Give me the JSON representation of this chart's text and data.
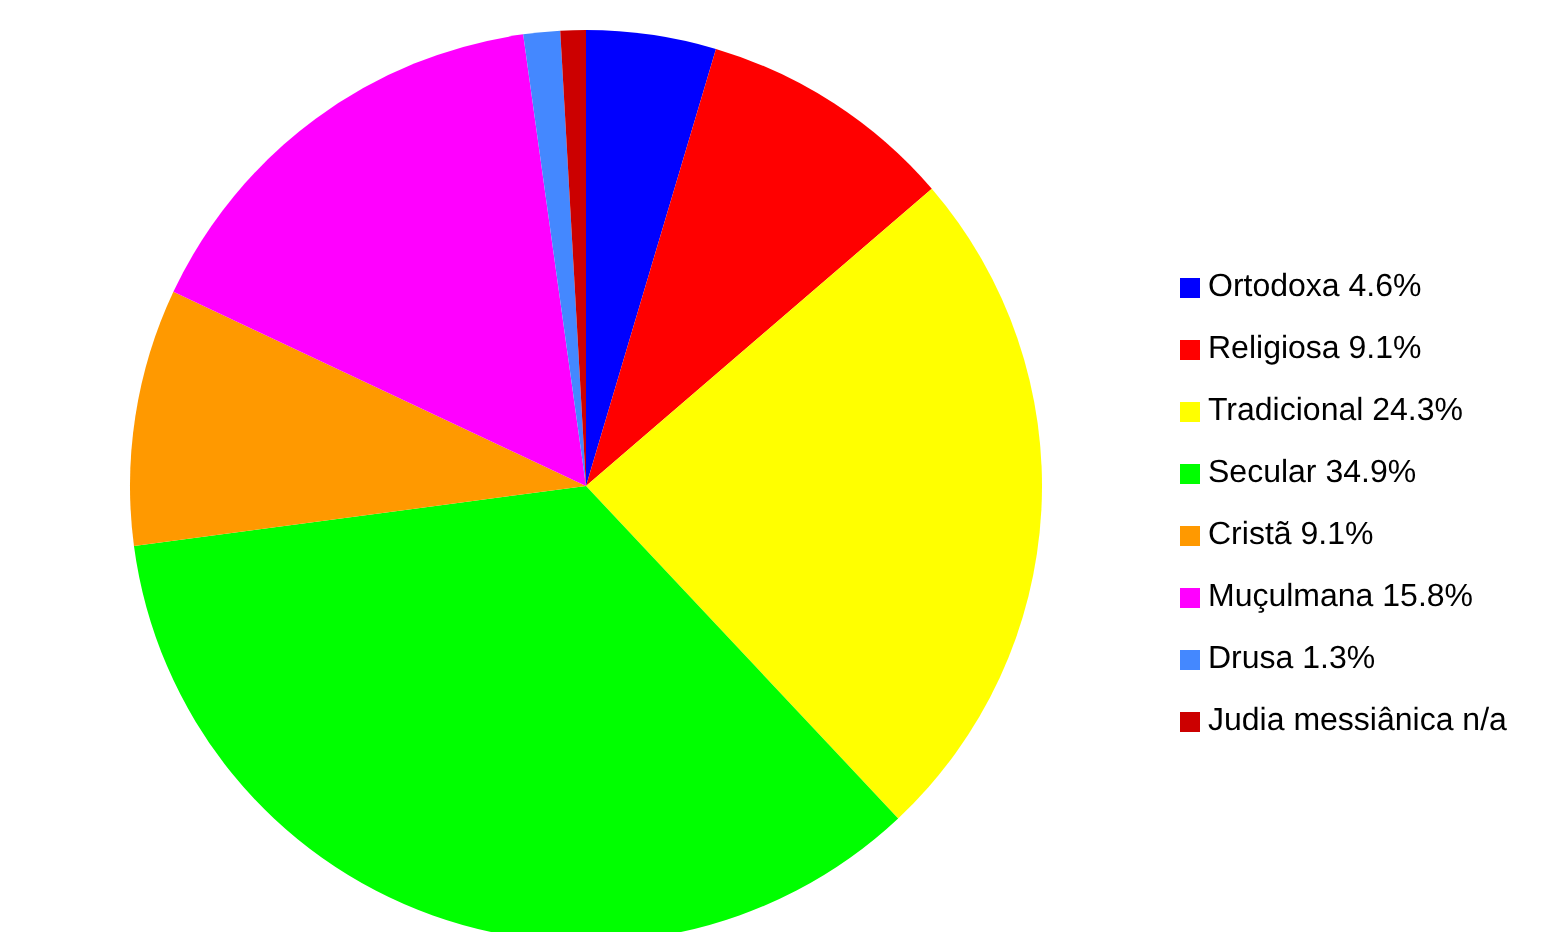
{
  "chart_data": {
    "type": "pie",
    "categories": [
      "Ortodoxa",
      "Religiosa",
      "Tradicional",
      "Secular",
      "Cristã",
      "Muçulmana",
      "Drusa",
      "Judia messiânica"
    ],
    "values": [
      4.6,
      9.1,
      24.3,
      34.9,
      9.1,
      15.8,
      1.3,
      0.9
    ],
    "value_labels": [
      "4.6%",
      "9.1%",
      "24.3%",
      "34.9%",
      "9.1%",
      "15.8%",
      "1.3%",
      "n/a"
    ],
    "colors": [
      "#0000ff",
      "#ff0000",
      "#ffff00",
      "#00ff00",
      "#ff9900",
      "#ff00ff",
      "#4488ff",
      "#cc0000"
    ],
    "legend": "right"
  }
}
